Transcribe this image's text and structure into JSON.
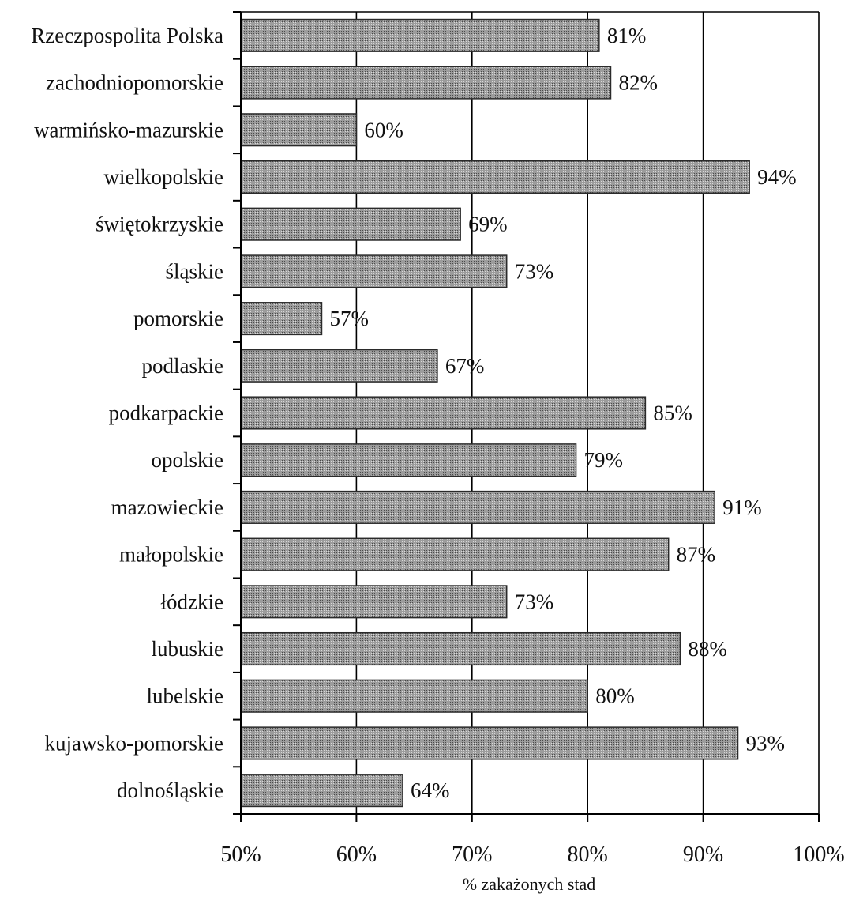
{
  "chart_data": {
    "type": "bar",
    "orientation": "horizontal",
    "categories": [
      "Rzeczpospolita Polska",
      "zachodniopomorskie",
      "warmińsko-mazurskie",
      "wielkopolskie",
      "świętokrzyskie",
      "śląskie",
      "pomorskie",
      "podlaskie",
      "podkarpackie",
      "opolskie",
      "mazowieckie",
      "małopolskie",
      "łódzkie",
      "lubuskie",
      "lubelskie",
      "kujawsko-pomorskie",
      "dolnośląskie"
    ],
    "values": [
      81,
      82,
      60,
      94,
      69,
      73,
      57,
      67,
      85,
      79,
      91,
      87,
      73,
      88,
      80,
      93,
      64
    ],
    "value_labels": [
      "81%",
      "82%",
      "60%",
      "94%",
      "69%",
      "73%",
      "57%",
      "67%",
      "85%",
      "79%",
      "91%",
      "87%",
      "73%",
      "88%",
      "80%",
      "93%",
      "64%"
    ],
    "xlim": [
      50,
      100
    ],
    "xticks": [
      50,
      60,
      70,
      80,
      90,
      100
    ],
    "xtick_labels": [
      "50%",
      "60%",
      "70%",
      "80%",
      "90%",
      "100%"
    ],
    "xlabel": "% zakażonych stad",
    "ylabel": "",
    "title": "",
    "grid": "vertical",
    "legend": "none",
    "colors": {
      "bar": "#8a8a8a",
      "bar_edge": "#2a2a2a",
      "grid": "#000000",
      "axis": "#000000"
    }
  }
}
